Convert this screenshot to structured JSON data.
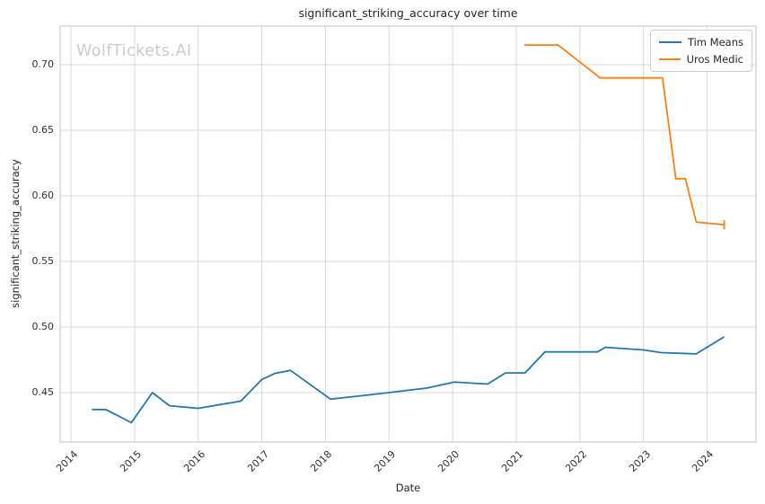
{
  "watermark": "WolfTickets.AI",
  "colors": {
    "series_blue": "#1f77b4",
    "series_orange": "#ff7f0e",
    "gridline": "#d9d9d9",
    "spine": "#cccccc",
    "text": "#262626",
    "watermark": "#cbcbcb",
    "background": "#ffffff"
  },
  "chart_data": {
    "type": "line",
    "title": "significant_striking_accuracy over time",
    "xlabel": "Date",
    "ylabel": "significant_striking_accuracy",
    "grid": true,
    "legend_position": "upper right",
    "xlim": [
      2013.83,
      2024.77
    ],
    "ylim": [
      0.4123,
      0.7295
    ],
    "xticks": [
      2014,
      2015,
      2016,
      2017,
      2018,
      2019,
      2020,
      2021,
      2022,
      2023,
      2024
    ],
    "xtick_labels": [
      "2014",
      "2015",
      "2016",
      "2017",
      "2018",
      "2019",
      "2020",
      "2021",
      "2022",
      "2023",
      "2024"
    ],
    "yticks": [
      0.45,
      0.5,
      0.55,
      0.6,
      0.65,
      0.7
    ],
    "ytick_labels": [
      "0.45",
      "0.50",
      "0.55",
      "0.60",
      "0.65",
      "0.70"
    ],
    "series": [
      {
        "name": "Tim Means",
        "color": "#1f77b4",
        "end_cap": false,
        "points": [
          [
            2014.33,
            0.437
          ],
          [
            2014.55,
            0.437
          ],
          [
            2014.95,
            0.427
          ],
          [
            2015.28,
            0.45
          ],
          [
            2015.55,
            0.44
          ],
          [
            2016.0,
            0.438
          ],
          [
            2016.67,
            0.4435
          ],
          [
            2017.0,
            0.46
          ],
          [
            2017.2,
            0.4645
          ],
          [
            2017.45,
            0.467
          ],
          [
            2018.08,
            0.445
          ],
          [
            2018.55,
            0.4475
          ],
          [
            2019.0,
            0.45
          ],
          [
            2019.6,
            0.4535
          ],
          [
            2020.03,
            0.458
          ],
          [
            2020.55,
            0.4565
          ],
          [
            2020.83,
            0.465
          ],
          [
            2021.14,
            0.465
          ],
          [
            2021.45,
            0.481
          ],
          [
            2022.28,
            0.481
          ],
          [
            2022.4,
            0.4845
          ],
          [
            2023.0,
            0.4825
          ],
          [
            2023.28,
            0.4805
          ],
          [
            2023.83,
            0.4795
          ],
          [
            2024.27,
            0.4925
          ]
        ]
      },
      {
        "name": "Uros Medic",
        "color": "#ff7f0e",
        "end_cap": true,
        "points": [
          [
            2021.13,
            0.715
          ],
          [
            2021.66,
            0.715
          ],
          [
            2022.32,
            0.69
          ],
          [
            2023.3,
            0.69
          ],
          [
            2023.51,
            0.613
          ],
          [
            2023.66,
            0.613
          ],
          [
            2023.83,
            0.58
          ],
          [
            2024.27,
            0.578
          ]
        ]
      }
    ]
  }
}
